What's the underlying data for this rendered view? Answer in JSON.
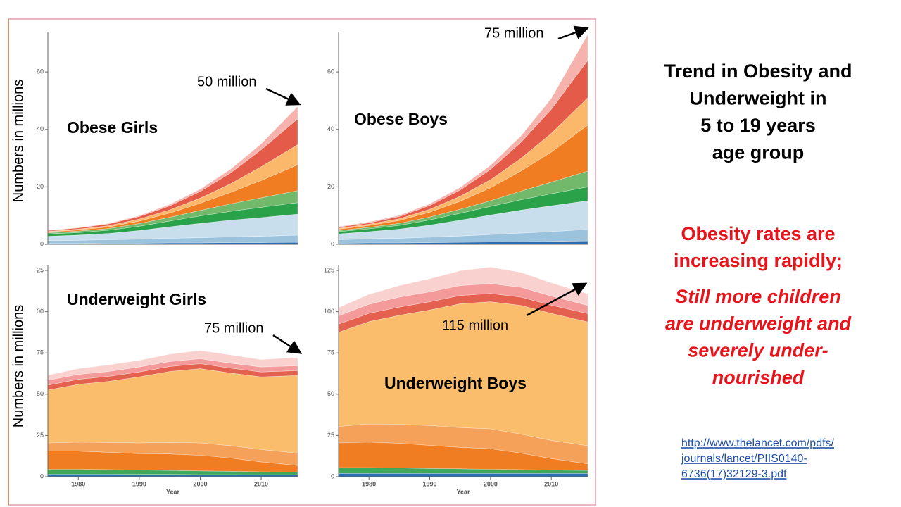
{
  "chart_data": [
    {
      "type": "area",
      "stacked": true,
      "title": "Obese Girls",
      "ylabel": "Numbers in millions",
      "annotation": "50 million",
      "x": [
        1975,
        1980,
        1985,
        1990,
        1995,
        2000,
        2005,
        2010,
        2016
      ],
      "xlim": [
        1975,
        2016
      ],
      "ylim": [
        0,
        74
      ],
      "yticks": [
        0,
        20,
        40,
        60
      ],
      "series": [
        {
          "color": "#2a6db0",
          "values": [
            0.3,
            0.3,
            0.4,
            0.4,
            0.5,
            0.5,
            0.6,
            0.6,
            0.7
          ]
        },
        {
          "color": "#9cc3de",
          "values": [
            1.0,
            1.1,
            1.2,
            1.4,
            1.6,
            1.8,
            2.0,
            2.2,
            2.5
          ]
        },
        {
          "color": "#c9deec",
          "values": [
            1.5,
            1.8,
            2.2,
            3.0,
            4.0,
            5.0,
            5.8,
            6.5,
            7.3
          ]
        },
        {
          "color": "#2aa24a",
          "values": [
            0.8,
            0.9,
            1.1,
            1.5,
            2.0,
            2.6,
            3.1,
            3.6,
            4.0
          ]
        },
        {
          "color": "#72b96c",
          "values": [
            0.4,
            0.5,
            0.6,
            0.9,
            1.3,
            1.9,
            2.6,
            3.3,
            4.2
          ]
        },
        {
          "color": "#f07d22",
          "values": [
            0.3,
            0.4,
            0.6,
            0.9,
            1.5,
            2.5,
            4.0,
            6.0,
            9.0
          ]
        },
        {
          "color": "#fbb86a",
          "values": [
            0.2,
            0.3,
            0.4,
            0.7,
            1.1,
            1.8,
            3.0,
            4.8,
            7.0
          ]
        },
        {
          "color": "#e45b49",
          "values": [
            0.3,
            0.4,
            0.6,
            0.9,
            1.4,
            2.3,
            3.8,
            5.9,
            9.0
          ]
        },
        {
          "color": "#f6b2ac",
          "values": [
            0.1,
            0.1,
            0.2,
            0.3,
            0.5,
            0.8,
            1.3,
            2.1,
            4.3
          ]
        }
      ]
    },
    {
      "type": "area",
      "stacked": true,
      "title": "Obese Boys",
      "annotation": "75 million",
      "x": [
        1975,
        1980,
        1985,
        1990,
        1995,
        2000,
        2005,
        2010,
        2016
      ],
      "xlim": [
        1975,
        2016
      ],
      "ylim": [
        0,
        74
      ],
      "yticks": [
        0,
        20,
        40,
        60
      ],
      "series": [
        {
          "color": "#2a6db0",
          "values": [
            0.4,
            0.5,
            0.5,
            0.6,
            0.7,
            0.8,
            0.9,
            1.0,
            1.2
          ]
        },
        {
          "color": "#9cc3de",
          "values": [
            1.2,
            1.4,
            1.6,
            1.9,
            2.2,
            2.6,
            3.0,
            3.4,
            4.0
          ]
        },
        {
          "color": "#c9deec",
          "values": [
            2.0,
            2.5,
            3.2,
            4.2,
            5.5,
            6.8,
            8.0,
            9.0,
            10.0
          ]
        },
        {
          "color": "#2aa24a",
          "values": [
            0.8,
            1.0,
            1.3,
            1.8,
            2.4,
            3.0,
            3.6,
            4.2,
            4.8
          ]
        },
        {
          "color": "#72b96c",
          "values": [
            0.4,
            0.5,
            0.7,
            1.0,
            1.4,
            2.0,
            3.0,
            4.0,
            5.5
          ]
        },
        {
          "color": "#f07d22",
          "values": [
            0.5,
            0.7,
            1.0,
            1.7,
            2.8,
            4.5,
            7.0,
            10.5,
            16.0
          ]
        },
        {
          "color": "#fbb86a",
          "values": [
            0.3,
            0.4,
            0.6,
            1.0,
            1.7,
            2.8,
            4.4,
            6.5,
            9.5
          ]
        },
        {
          "color": "#e45b49",
          "values": [
            0.4,
            0.5,
            0.8,
            1.3,
            2.2,
            3.6,
            5.6,
            8.4,
            13.0
          ]
        },
        {
          "color": "#f6b2ac",
          "values": [
            0.2,
            0.3,
            0.4,
            0.6,
            0.9,
            1.4,
            2.2,
            3.8,
            9.0
          ]
        }
      ]
    },
    {
      "type": "area",
      "stacked": true,
      "title": "Underweight Girls",
      "ylabel": "Numbers in millions",
      "annotation": "75 million",
      "xlabel": "Year",
      "x": [
        1975,
        1980,
        1985,
        1990,
        1995,
        2000,
        2005,
        2010,
        2016
      ],
      "xlim": [
        1975,
        2016
      ],
      "xticks": [
        1980,
        1990,
        2000,
        2010
      ],
      "ylim": [
        0,
        128
      ],
      "yticks": [
        0,
        25,
        50,
        75,
        {
          "value": 100,
          "label": "00"
        },
        {
          "value": 125,
          "label": "25"
        }
      ],
      "series": [
        {
          "color": "#2a6db0",
          "values": [
            1.5,
            1.5,
            1.5,
            1.4,
            1.4,
            1.3,
            1.3,
            1.2,
            1.2
          ]
        },
        {
          "color": "#3fa85a",
          "values": [
            3,
            3,
            2.8,
            2.6,
            2.4,
            2.2,
            2.0,
            1.8,
            1.6
          ]
        },
        {
          "color": "#f07d22",
          "values": [
            11,
            11,
            10.5,
            10,
            10,
            9.5,
            8,
            6,
            4
          ]
        },
        {
          "color": "#f5a15a",
          "values": [
            5,
            5.5,
            6,
            6.5,
            7,
            7.5,
            7.5,
            7.5,
            7.5
          ]
        },
        {
          "color": "#f9bd6c",
          "values": [
            32,
            35,
            37,
            40,
            43,
            45,
            44,
            44,
            47
          ]
        },
        {
          "color": "#e4604f",
          "values": [
            3,
            3,
            3,
            3,
            3,
            3,
            3,
            3,
            3
          ]
        },
        {
          "color": "#f49a9a",
          "values": [
            3,
            3,
            3,
            3,
            3,
            3,
            3,
            3,
            3
          ]
        },
        {
          "color": "#f9d2d0",
          "values": [
            3,
            3.5,
            4,
            4,
            4.5,
            5,
            5,
            4.5,
            5
          ]
        }
      ]
    },
    {
      "type": "area",
      "stacked": true,
      "title": "Underweight Boys",
      "annotation": "115 million",
      "xlabel": "Year",
      "x": [
        1975,
        1980,
        1985,
        1990,
        1995,
        2000,
        2005,
        2010,
        2016
      ],
      "xlim": [
        1975,
        2016
      ],
      "xticks": [
        1980,
        1990,
        2000,
        2010
      ],
      "ylim": [
        0,
        128
      ],
      "yticks": [
        0,
        25,
        50,
        75,
        100,
        125
      ],
      "series": [
        {
          "color": "#2a6db0",
          "values": [
            2,
            2,
            2,
            2,
            2,
            2,
            2,
            2,
            2
          ]
        },
        {
          "color": "#3fa85a",
          "values": [
            3.5,
            3.5,
            3.3,
            3,
            2.8,
            2.5,
            2.3,
            2,
            1.8
          ]
        },
        {
          "color": "#f07d22",
          "values": [
            15,
            15.5,
            15,
            14,
            13,
            12.5,
            10,
            7,
            4
          ]
        },
        {
          "color": "#f5a15a",
          "values": [
            10,
            11,
            11.5,
            12,
            12,
            12,
            11.5,
            11,
            11
          ]
        },
        {
          "color": "#f9bd6c",
          "values": [
            57,
            62,
            66,
            70,
            75,
            77,
            78,
            77,
            75
          ]
        },
        {
          "color": "#e4604f",
          "values": [
            5,
            5,
            5,
            5,
            5,
            5,
            5,
            5,
            5
          ]
        },
        {
          "color": "#f49a9a",
          "values": [
            5,
            5.5,
            6,
            6,
            6,
            6,
            6,
            5.5,
            5
          ]
        },
        {
          "color": "#f9d2d0",
          "values": [
            5,
            6,
            7,
            8,
            9,
            10,
            9,
            8,
            7
          ]
        }
      ]
    }
  ],
  "slide": {
    "title_lines": [
      "Trend in Obesity and",
      "Underweight in",
      "5 to 19 years",
      "age group"
    ],
    "highlight_lines": [
      "Obesity rates are",
      "increasing rapidly;"
    ],
    "note_lines": [
      "Still more children",
      "are underweight and",
      "severely under-",
      "nourished"
    ],
    "link_lines": [
      "http://www.thelancet.com/pdfs/",
      "journals/lancet/PIIS0140-",
      "6736(17)32129-3.pdf"
    ]
  }
}
